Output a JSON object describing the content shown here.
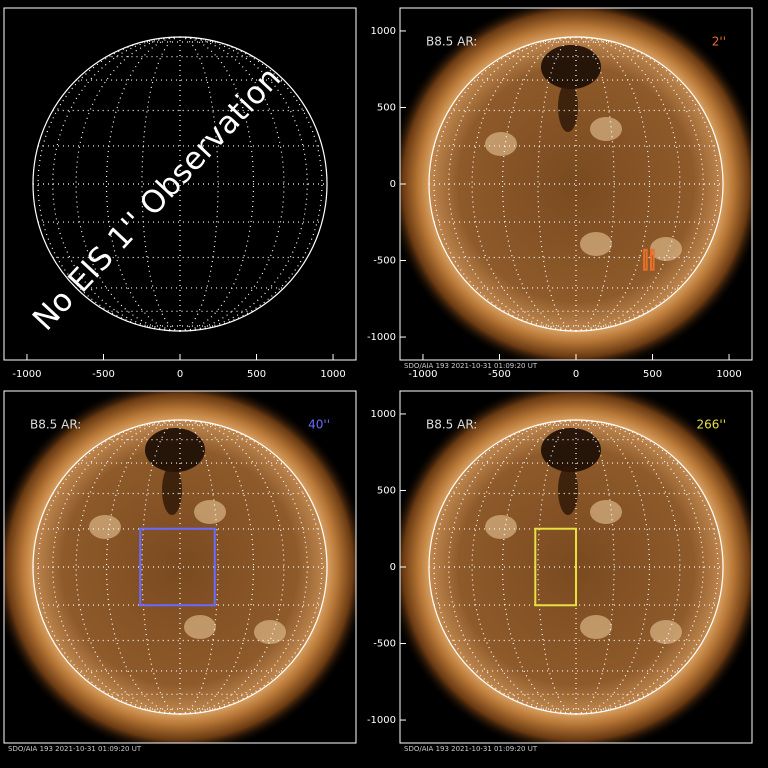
{
  "chart_data": [
    {
      "type": "image",
      "sun_image": false,
      "annotation": "No EIS 1'' Observation",
      "xlim": [
        -1150,
        1150
      ],
      "ylim": [
        -1150,
        1150
      ],
      "xticks": [
        -1000,
        -500,
        0,
        500,
        1000
      ]
    },
    {
      "type": "image",
      "sun_image": true,
      "label": "B8.5 AR:",
      "label_value": "2''",
      "color": "#e8702a",
      "footer": "SDO/AIA 193   2021-10-31 01:09:20 UT",
      "xlim": [
        -1150,
        1150
      ],
      "ylim": [
        -1150,
        1150
      ],
      "xticks": [
        -1000,
        -500,
        0,
        500,
        1000
      ],
      "yticks": [
        -1000,
        -500,
        0,
        500,
        1000
      ],
      "boxes": [
        {
          "x": [
            445,
            462
          ],
          "y": [
            -430,
            -560
          ]
        },
        {
          "x": [
            490,
            507
          ],
          "y": [
            -430,
            -560
          ]
        }
      ]
    },
    {
      "type": "image",
      "sun_image": true,
      "label": "B8.5 AR:",
      "label_value": "40''",
      "color": "#6a6aff",
      "footer": "SDO/AIA 193   2021-10-31 01:09:20 UT",
      "xlim": [
        -1150,
        1150
      ],
      "ylim": [
        -1150,
        1150
      ],
      "boxes": [
        {
          "x": [
            -260,
            227
          ],
          "y": [
            -250,
            250
          ]
        }
      ]
    },
    {
      "type": "image",
      "sun_image": true,
      "label": "B8.5 AR:",
      "label_value": "266''",
      "color": "#e6e040",
      "footer": "SDO/AIA 193   2021-10-31 01:09:20 UT",
      "xlim": [
        -1150,
        1150
      ],
      "ylim": [
        -1150,
        1150
      ],
      "yticks": [
        -1000,
        -500,
        0,
        500,
        1000
      ],
      "boxes": [
        {
          "x": [
            -266,
            0
          ],
          "y": [
            -250,
            250
          ]
        }
      ]
    }
  ]
}
